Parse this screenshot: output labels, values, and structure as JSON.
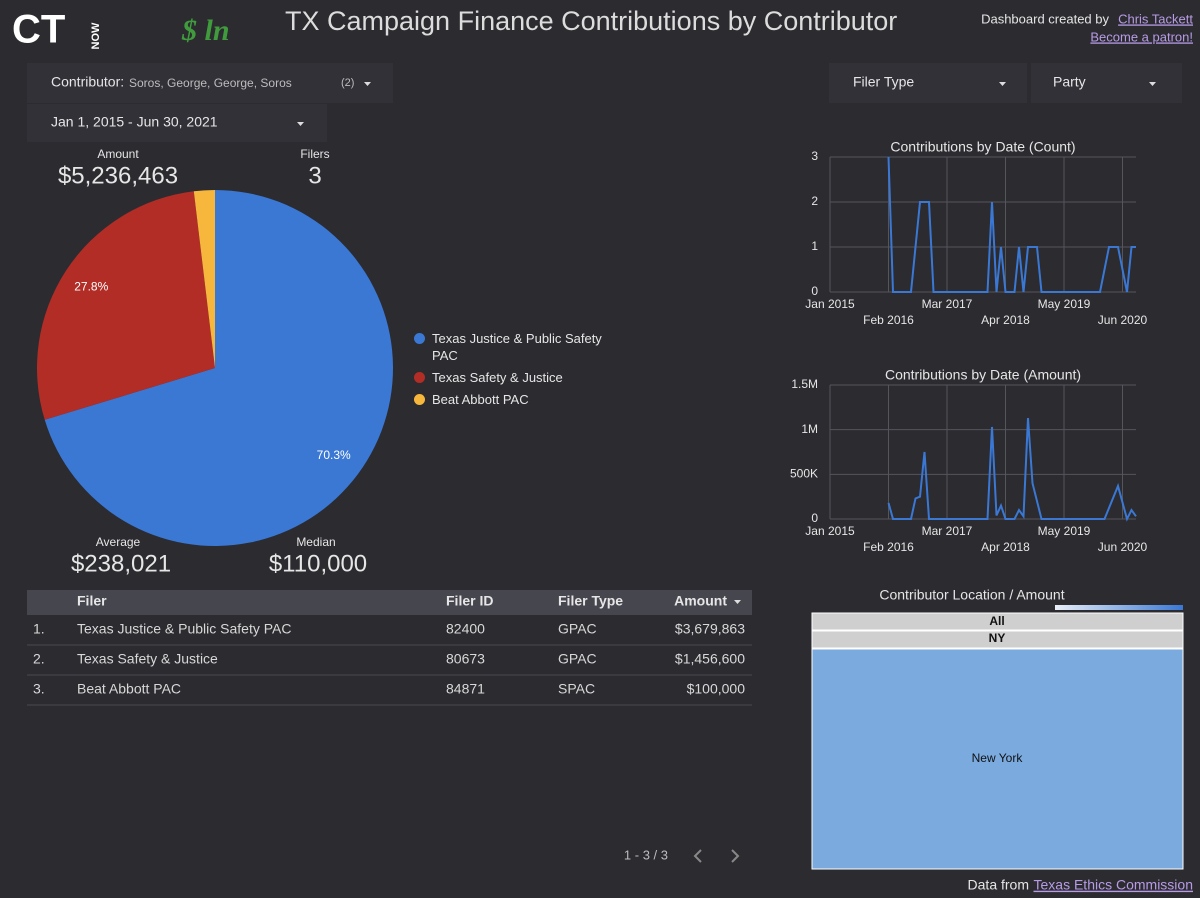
{
  "header": {
    "logo": "CT",
    "logo_sub": "NOW",
    "brand": "$ ln",
    "title": "TX Campaign Finance Contributions by Contributor",
    "credit": "Dashboard created by",
    "credit_link": "Chris Tackett",
    "patron_link": "Become a patron!"
  },
  "filters": {
    "contributor_label": "Contributor:",
    "contributor_value": "Soros, George, George, Soros",
    "contributor_count": "(2)",
    "date_range": "Jan 1, 2015 - Jun 30, 2021",
    "filer_type": "Filer Type",
    "party": "Party"
  },
  "scorecards": [
    {
      "label": "Amount",
      "value": "$5,236,463"
    },
    {
      "label": "Filers",
      "value": "3"
    },
    {
      "label": "Average",
      "value": "$238,021"
    },
    {
      "label": "Median",
      "value": "$110,000"
    }
  ],
  "chart_data": [
    {
      "type": "pie",
      "categories": [
        "Texas Justice & Public Safety PAC",
        "Texas Safety & Justice",
        "Beat Abbott PAC"
      ],
      "values": [
        70.3,
        27.8,
        1.9
      ],
      "value_labels": [
        "70.3%",
        "27.8%",
        null
      ],
      "colors": [
        "#3a78d4",
        "#b22d26",
        "#f6b73c"
      ],
      "legend": "right"
    },
    {
      "type": "line",
      "title": "Contributions by Date (Count)",
      "color": "#3a78d4",
      "x": [
        "2016-02",
        "2016-03",
        "2016-07",
        "2016-09",
        "2016-11",
        "2016-12",
        "2017-12",
        "2018-01",
        "2018-02",
        "2018-03",
        "2018-04",
        "2018-06",
        "2018-07",
        "2018-08",
        "2018-09",
        "2018-11",
        "2018-12",
        "2020-01",
        "2020-03",
        "2020-05",
        "2020-07",
        "2020-08",
        "2020-09"
      ],
      "values": [
        3,
        0,
        0,
        2,
        2,
        0,
        0,
        2,
        0,
        1,
        0,
        0,
        1,
        0,
        1,
        1,
        0,
        0,
        1,
        1,
        0,
        1,
        1
      ],
      "xlim": [
        "2015-01",
        "2020-09"
      ],
      "xticks": [
        {
          "value": "2015-01",
          "label": "Jan 2015"
        },
        {
          "value": "2016-02",
          "label": "Feb 2016"
        },
        {
          "value": "2017-03",
          "label": "Mar 2017"
        },
        {
          "value": "2018-04",
          "label": "Apr 2018"
        },
        {
          "value": "2019-05",
          "label": "May 2019"
        },
        {
          "value": "2020-06",
          "label": "Jun 2020"
        }
      ],
      "ylim": [
        0,
        3
      ],
      "yticks": [
        0,
        1,
        2,
        3
      ],
      "grid": true
    },
    {
      "type": "line",
      "title": "Contributions by Date (Amount)",
      "color": "#3a78d4",
      "x": [
        "2016-02",
        "2016-03",
        "2016-07",
        "2016-08",
        "2016-09",
        "2016-10",
        "2016-11",
        "2017-12",
        "2018-01",
        "2018-02",
        "2018-03",
        "2018-04",
        "2018-06",
        "2018-07",
        "2018-08",
        "2018-09",
        "2018-10",
        "2018-12",
        "2020-02",
        "2020-05",
        "2020-07",
        "2020-08",
        "2020-09"
      ],
      "values": [
        180000,
        0,
        0,
        230000,
        250000,
        750000,
        0,
        0,
        1030000,
        40000,
        150000,
        0,
        0,
        100000,
        30000,
        1130000,
        400000,
        0,
        0,
        370000,
        0,
        100000,
        30000
      ],
      "xlim": [
        "2015-01",
        "2020-09"
      ],
      "xticks": [
        {
          "value": "2015-01",
          "label": "Jan 2015"
        },
        {
          "value": "2016-02",
          "label": "Feb 2016"
        },
        {
          "value": "2017-03",
          "label": "Mar 2017"
        },
        {
          "value": "2018-04",
          "label": "Apr 2018"
        },
        {
          "value": "2019-05",
          "label": "May 2019"
        },
        {
          "value": "2020-06",
          "label": "Jun 2020"
        }
      ],
      "ylim": [
        0,
        1500000
      ],
      "yticks": [
        0,
        {
          "value": 500000,
          "label": "500K"
        },
        {
          "value": 1000000,
          "label": "1M"
        },
        {
          "value": 1500000,
          "label": "1.5M"
        }
      ],
      "grid": true
    }
  ],
  "table": {
    "columns": [
      "Filer",
      "Filer ID",
      "Filer Type",
      "Amount"
    ],
    "rows": [
      [
        "1.",
        "Texas Justice & Public Safety PAC",
        "82400",
        "GPAC",
        "$3,679,863"
      ],
      [
        "2.",
        "Texas Safety & Justice",
        "80673",
        "GPAC",
        "$1,456,600"
      ],
      [
        "3.",
        "Beat Abbott PAC",
        "84871",
        "SPAC",
        "$100,000"
      ]
    ],
    "pagination": "1 - 3 / 3"
  },
  "treemap": {
    "title": "Contributor Location / Amount",
    "levels": [
      "All",
      "NY"
    ],
    "nodes": [
      "New York"
    ]
  },
  "footer": {
    "text": "Data from",
    "link": "Texas Ethics Commission"
  }
}
